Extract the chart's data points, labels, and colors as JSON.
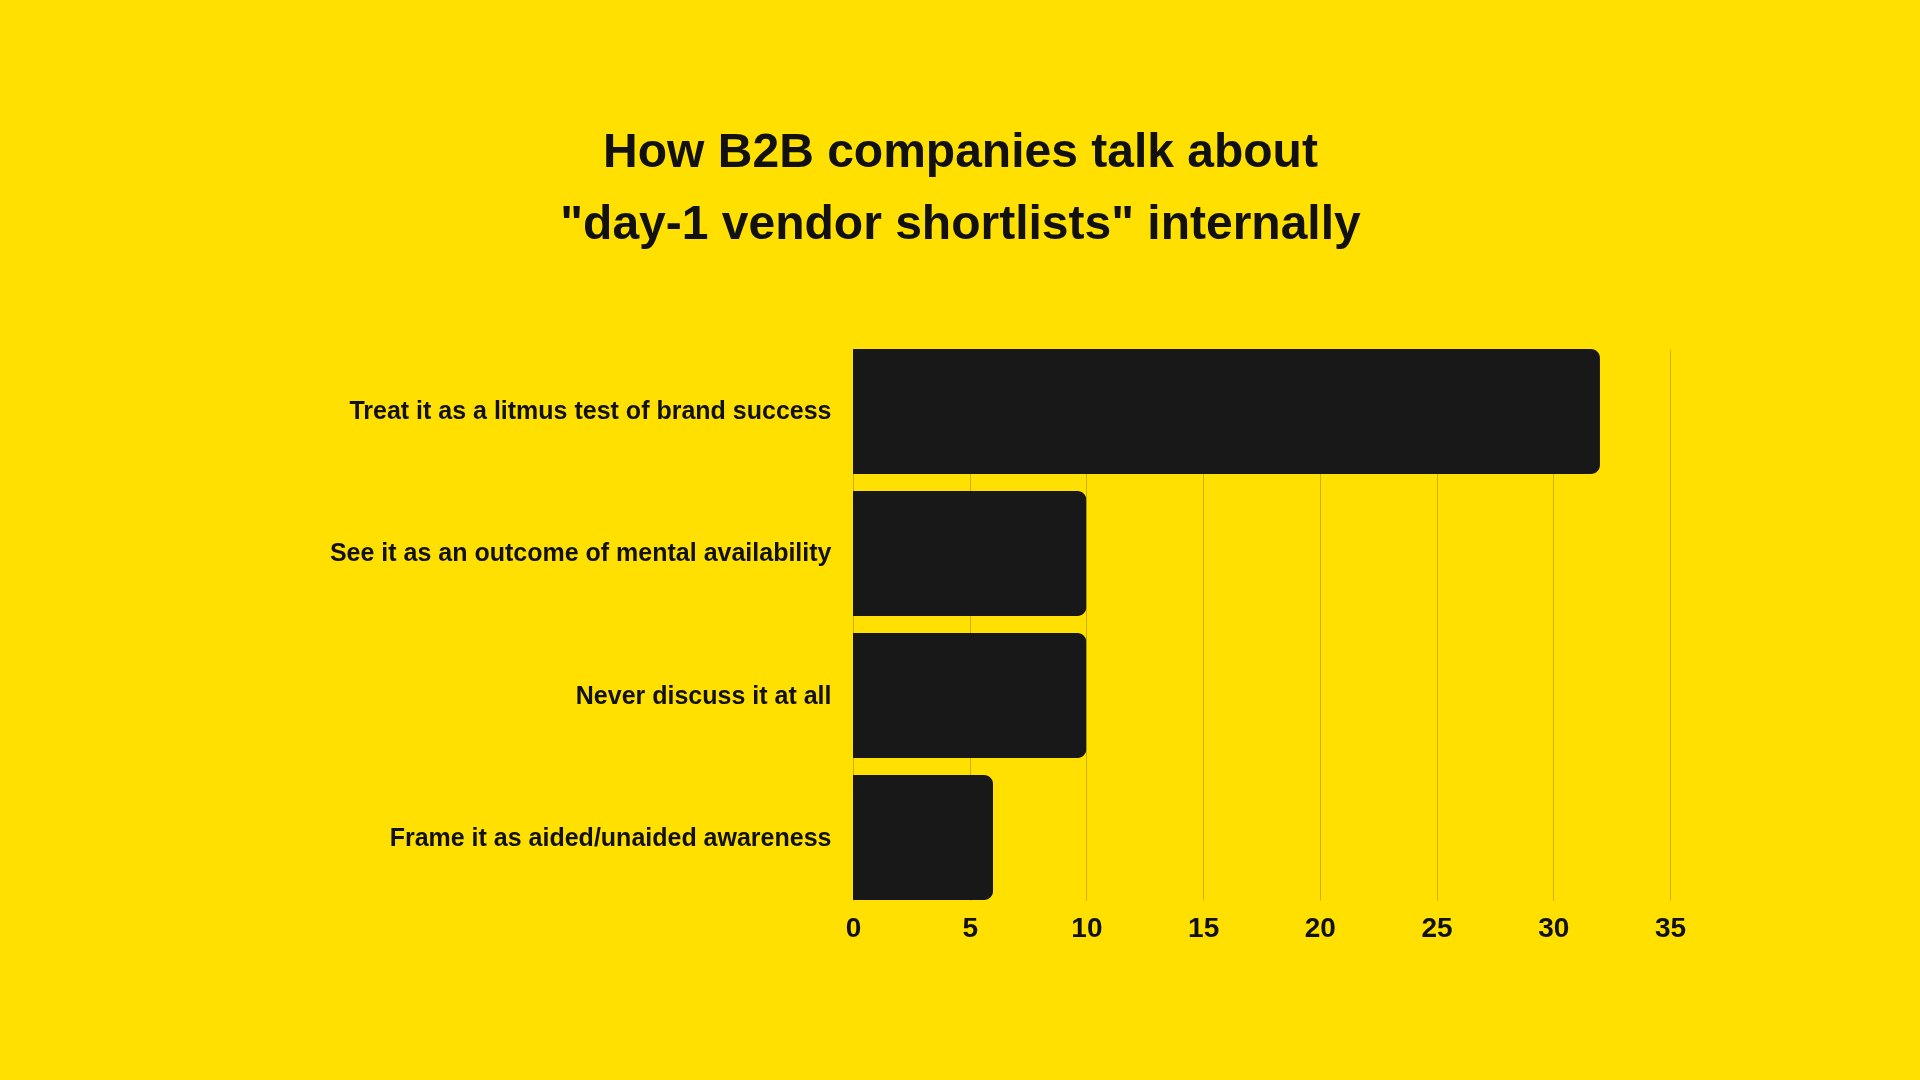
{
  "chart_data": {
    "type": "bar",
    "orientation": "horizontal",
    "title": "How B2B companies talk about\n\"day-1 vendor shortlists\" internally",
    "categories": [
      "Treat it as a litmus test of brand success",
      "See it as an outcome of mental availability",
      "Never discuss it at all",
      "Frame it as aided/unaided awareness"
    ],
    "values": [
      32,
      10,
      10,
      6
    ],
    "color": "#181818",
    "xlim": [
      0,
      35
    ],
    "xticks": [
      0,
      5,
      10,
      15,
      20,
      25,
      30,
      35
    ],
    "grid": "x"
  }
}
